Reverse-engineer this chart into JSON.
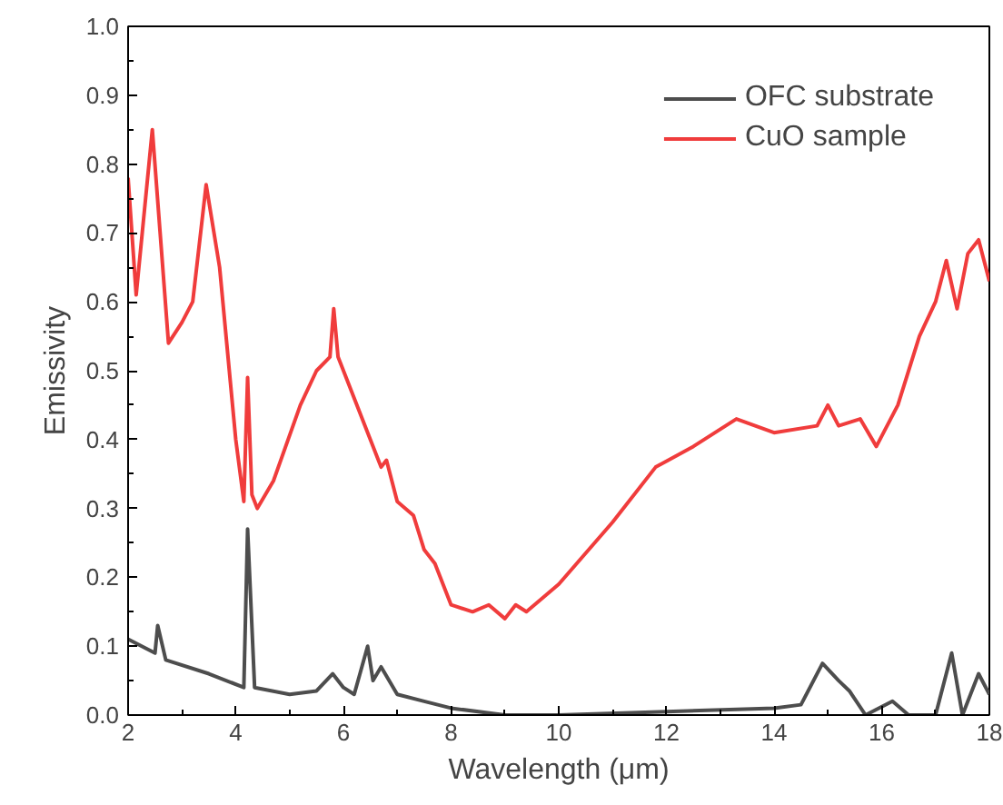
{
  "chart_data": {
    "type": "line",
    "xlabel": "Wavelength (μm)",
    "ylabel": "Emissivity",
    "xlim": [
      2,
      18
    ],
    "ylim": [
      0,
      1.0
    ],
    "xticks": [
      2,
      4,
      6,
      8,
      10,
      12,
      14,
      16,
      18
    ],
    "yticks": [
      {
        "value": 0,
        "label": "0.0"
      },
      0.1,
      0.2,
      0.3,
      0.4,
      0.5,
      0.6,
      0.7,
      0.8,
      0.9,
      {
        "value": 1.0,
        "label": "1.0"
      }
    ],
    "grid": false,
    "legend": "top right",
    "line_style": "solid",
    "marker": "none",
    "series": [
      {
        "name": "OFC substrate",
        "color": "#4d4d4d",
        "x": [
          2,
          2.5,
          2.55,
          2.7,
          3.5,
          4.15,
          4.22,
          4.35,
          5.0,
          5.5,
          5.8,
          6.0,
          6.2,
          6.45,
          6.55,
          6.7,
          7.0,
          7.5,
          8.0,
          9.0,
          10,
          12,
          14,
          14.5,
          14.9,
          15.2,
          15.4,
          15.7,
          16.2,
          16.5,
          17.0,
          17.3,
          17.5,
          17.8,
          18
        ],
        "values": [
          0.11,
          0.09,
          0.13,
          0.08,
          0.06,
          0.04,
          0.27,
          0.04,
          0.03,
          0.035,
          0.06,
          0.04,
          0.03,
          0.1,
          0.05,
          0.07,
          0.03,
          0.02,
          0.01,
          0.0,
          0.0,
          0.005,
          0.01,
          0.015,
          0.075,
          0.05,
          0.035,
          0.0,
          0.02,
          0.0,
          0.0,
          0.09,
          0.0,
          0.06,
          0.03
        ]
      },
      {
        "name": "CuO sample",
        "color": "#f03c3c",
        "x": [
          2,
          2.15,
          2.45,
          2.75,
          3.0,
          3.2,
          3.45,
          3.7,
          4.0,
          4.15,
          4.22,
          4.3,
          4.4,
          4.7,
          5.2,
          5.5,
          5.75,
          5.82,
          5.9,
          6.2,
          6.5,
          6.7,
          6.8,
          7.0,
          7.3,
          7.5,
          7.7,
          8.0,
          8.4,
          8.7,
          9.0,
          9.2,
          9.4,
          10,
          11,
          11.8,
          12.5,
          13.3,
          14,
          14.8,
          15.0,
          15.2,
          15.6,
          15.9,
          16.3,
          16.7,
          17.0,
          17.2,
          17.4,
          17.6,
          17.8,
          18
        ],
        "values": [
          0.78,
          0.61,
          0.85,
          0.54,
          0.57,
          0.6,
          0.77,
          0.65,
          0.4,
          0.31,
          0.49,
          0.32,
          0.3,
          0.34,
          0.45,
          0.5,
          0.52,
          0.59,
          0.52,
          0.46,
          0.4,
          0.36,
          0.37,
          0.31,
          0.29,
          0.24,
          0.22,
          0.16,
          0.15,
          0.16,
          0.14,
          0.16,
          0.15,
          0.19,
          0.28,
          0.36,
          0.39,
          0.43,
          0.41,
          0.42,
          0.45,
          0.42,
          0.43,
          0.39,
          0.45,
          0.55,
          0.6,
          0.66,
          0.59,
          0.67,
          0.69,
          0.63
        ]
      }
    ]
  }
}
